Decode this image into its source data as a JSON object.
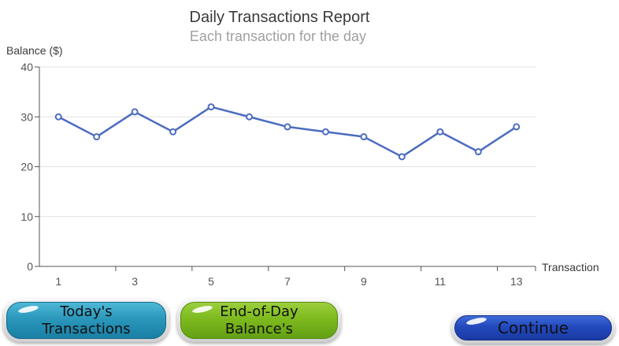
{
  "chart_data": {
    "type": "line",
    "title": "Daily Transactions Report",
    "subtitle": "Each transaction for the day",
    "ylabel": "Balance ($)",
    "xlabel": "Transaction",
    "ylim": [
      0,
      40
    ],
    "yticks": [
      0,
      10,
      20,
      30,
      40
    ],
    "xlim": [
      0.5,
      13.5
    ],
    "xtick_labels": [
      "1",
      "3",
      "5",
      "7",
      "9",
      "11",
      "13"
    ],
    "grid": true,
    "line_color": "#4b6cbf",
    "x": [
      1,
      2,
      3,
      4,
      5,
      6,
      7,
      8,
      9,
      10,
      11,
      12,
      13
    ],
    "values": [
      30,
      26,
      31,
      27,
      32,
      30,
      28,
      27,
      26,
      22,
      27,
      23,
      28
    ]
  },
  "buttons": {
    "todays_transactions": "Today's\nTransactions",
    "end_of_day_balances": "End-of-Day\nBalance's",
    "continue": "Continue"
  }
}
